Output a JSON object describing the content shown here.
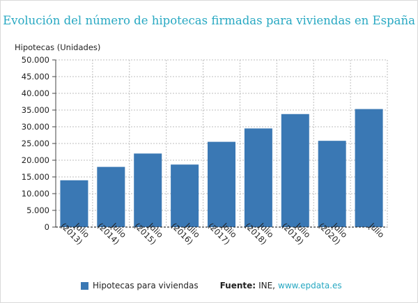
{
  "page": {
    "title": "Evolución del número de hipotecas firmadas para viviendas en España"
  },
  "legend": {
    "series_label": "Hipotecas para viviendas",
    "source_label": "Fuente:",
    "source_value": "INE,",
    "source_link": "www.epdata.es"
  },
  "colors": {
    "bar": "#3a78b4",
    "title": "#27a8c2",
    "grid": "#bdbdbd",
    "axis": "#444444"
  },
  "chart_data": {
    "type": "bar",
    "title": "Evolución del número de hipotecas firmadas para viviendas en España",
    "ylabel": "Hipotecas (Unidades)",
    "xlabel": "",
    "ylim": [
      0,
      50000
    ],
    "yticks": [
      0,
      5000,
      10000,
      15000,
      20000,
      25000,
      30000,
      35000,
      40000,
      45000,
      50000
    ],
    "ytick_labels": [
      "0",
      "5.000",
      "10.000",
      "15.000",
      "20.000",
      "25.000",
      "30.000",
      "35.000",
      "40.000",
      "45.000",
      "50.000"
    ],
    "grid": true,
    "categories": [
      [
        "Julio",
        "(2013)"
      ],
      [
        "Julio",
        "(2014)"
      ],
      [
        "Julio",
        "(2015)"
      ],
      [
        "Julio",
        "(2016)"
      ],
      [
        "Julio",
        "(2017)"
      ],
      [
        "Julio",
        "(2018)"
      ],
      [
        "Julio",
        "(2019)"
      ],
      [
        "Julio",
        "(2020)"
      ],
      [
        "Julio"
      ]
    ],
    "series": [
      {
        "name": "Hipotecas para viviendas",
        "values": [
          14000,
          18000,
          22000,
          18700,
          25500,
          29500,
          33800,
          25800,
          35300
        ]
      }
    ]
  }
}
